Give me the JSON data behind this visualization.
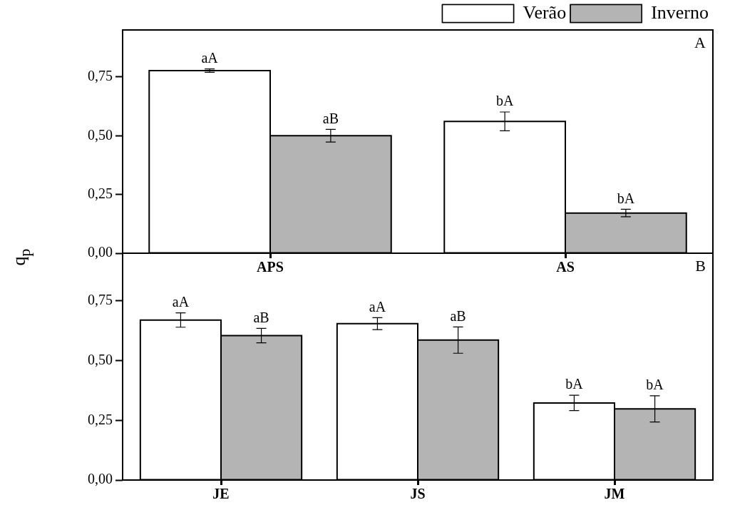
{
  "chart_data": [
    {
      "type": "bar",
      "ylabel": "q$_{p}$",
      "categories": [
        "APS",
        "AS"
      ],
      "series": [
        {
          "name": "Verão",
          "color": "#ffffff",
          "values": [
            0.777,
            0.561
          ],
          "errors": [
            0.007,
            0.04
          ],
          "value_labels": [
            "aA",
            "bA"
          ]
        },
        {
          "name": "Inverno",
          "color": "#b4b4b4",
          "values": [
            0.5,
            0.171
          ],
          "errors": [
            0.027,
            0.016
          ],
          "value_labels": [
            "aB",
            "bA"
          ]
        }
      ],
      "ylim": [
        0,
        0.95
      ],
      "yticks": [
        {
          "value": 0,
          "label": "0,00"
        },
        {
          "value": 0.25,
          "label": "0,25"
        },
        {
          "value": 0.5,
          "label": "0,50"
        },
        {
          "value": 0.75,
          "label": "0,75"
        }
      ],
      "grid": false,
      "legend": "top right",
      "annotations": [
        "A"
      ]
    },
    {
      "type": "bar",
      "categories": [
        "JE",
        "JS",
        "JM"
      ],
      "series": [
        {
          "color": "#ffffff",
          "values": [
            0.67,
            0.655,
            0.323
          ],
          "errors": [
            0.03,
            0.025,
            0.032
          ],
          "value_labels": [
            "aA",
            "aA",
            "bA"
          ]
        },
        {
          "color": "#b4b4b4",
          "values": [
            0.605,
            0.586,
            0.298
          ],
          "errors": [
            0.03,
            0.055,
            0.055
          ],
          "value_labels": [
            "aB",
            "aB",
            "bA"
          ]
        }
      ],
      "ylim": [
        0,
        0.95
      ],
      "yticks": [
        {
          "value": 0,
          "label": "0,00"
        },
        {
          "value": 0.25,
          "label": "0,25"
        },
        {
          "value": 0.5,
          "label": "0,50"
        },
        {
          "value": 0.75,
          "label": "0,75"
        }
      ],
      "grid": false,
      "annotations": [
        "B"
      ]
    }
  ]
}
